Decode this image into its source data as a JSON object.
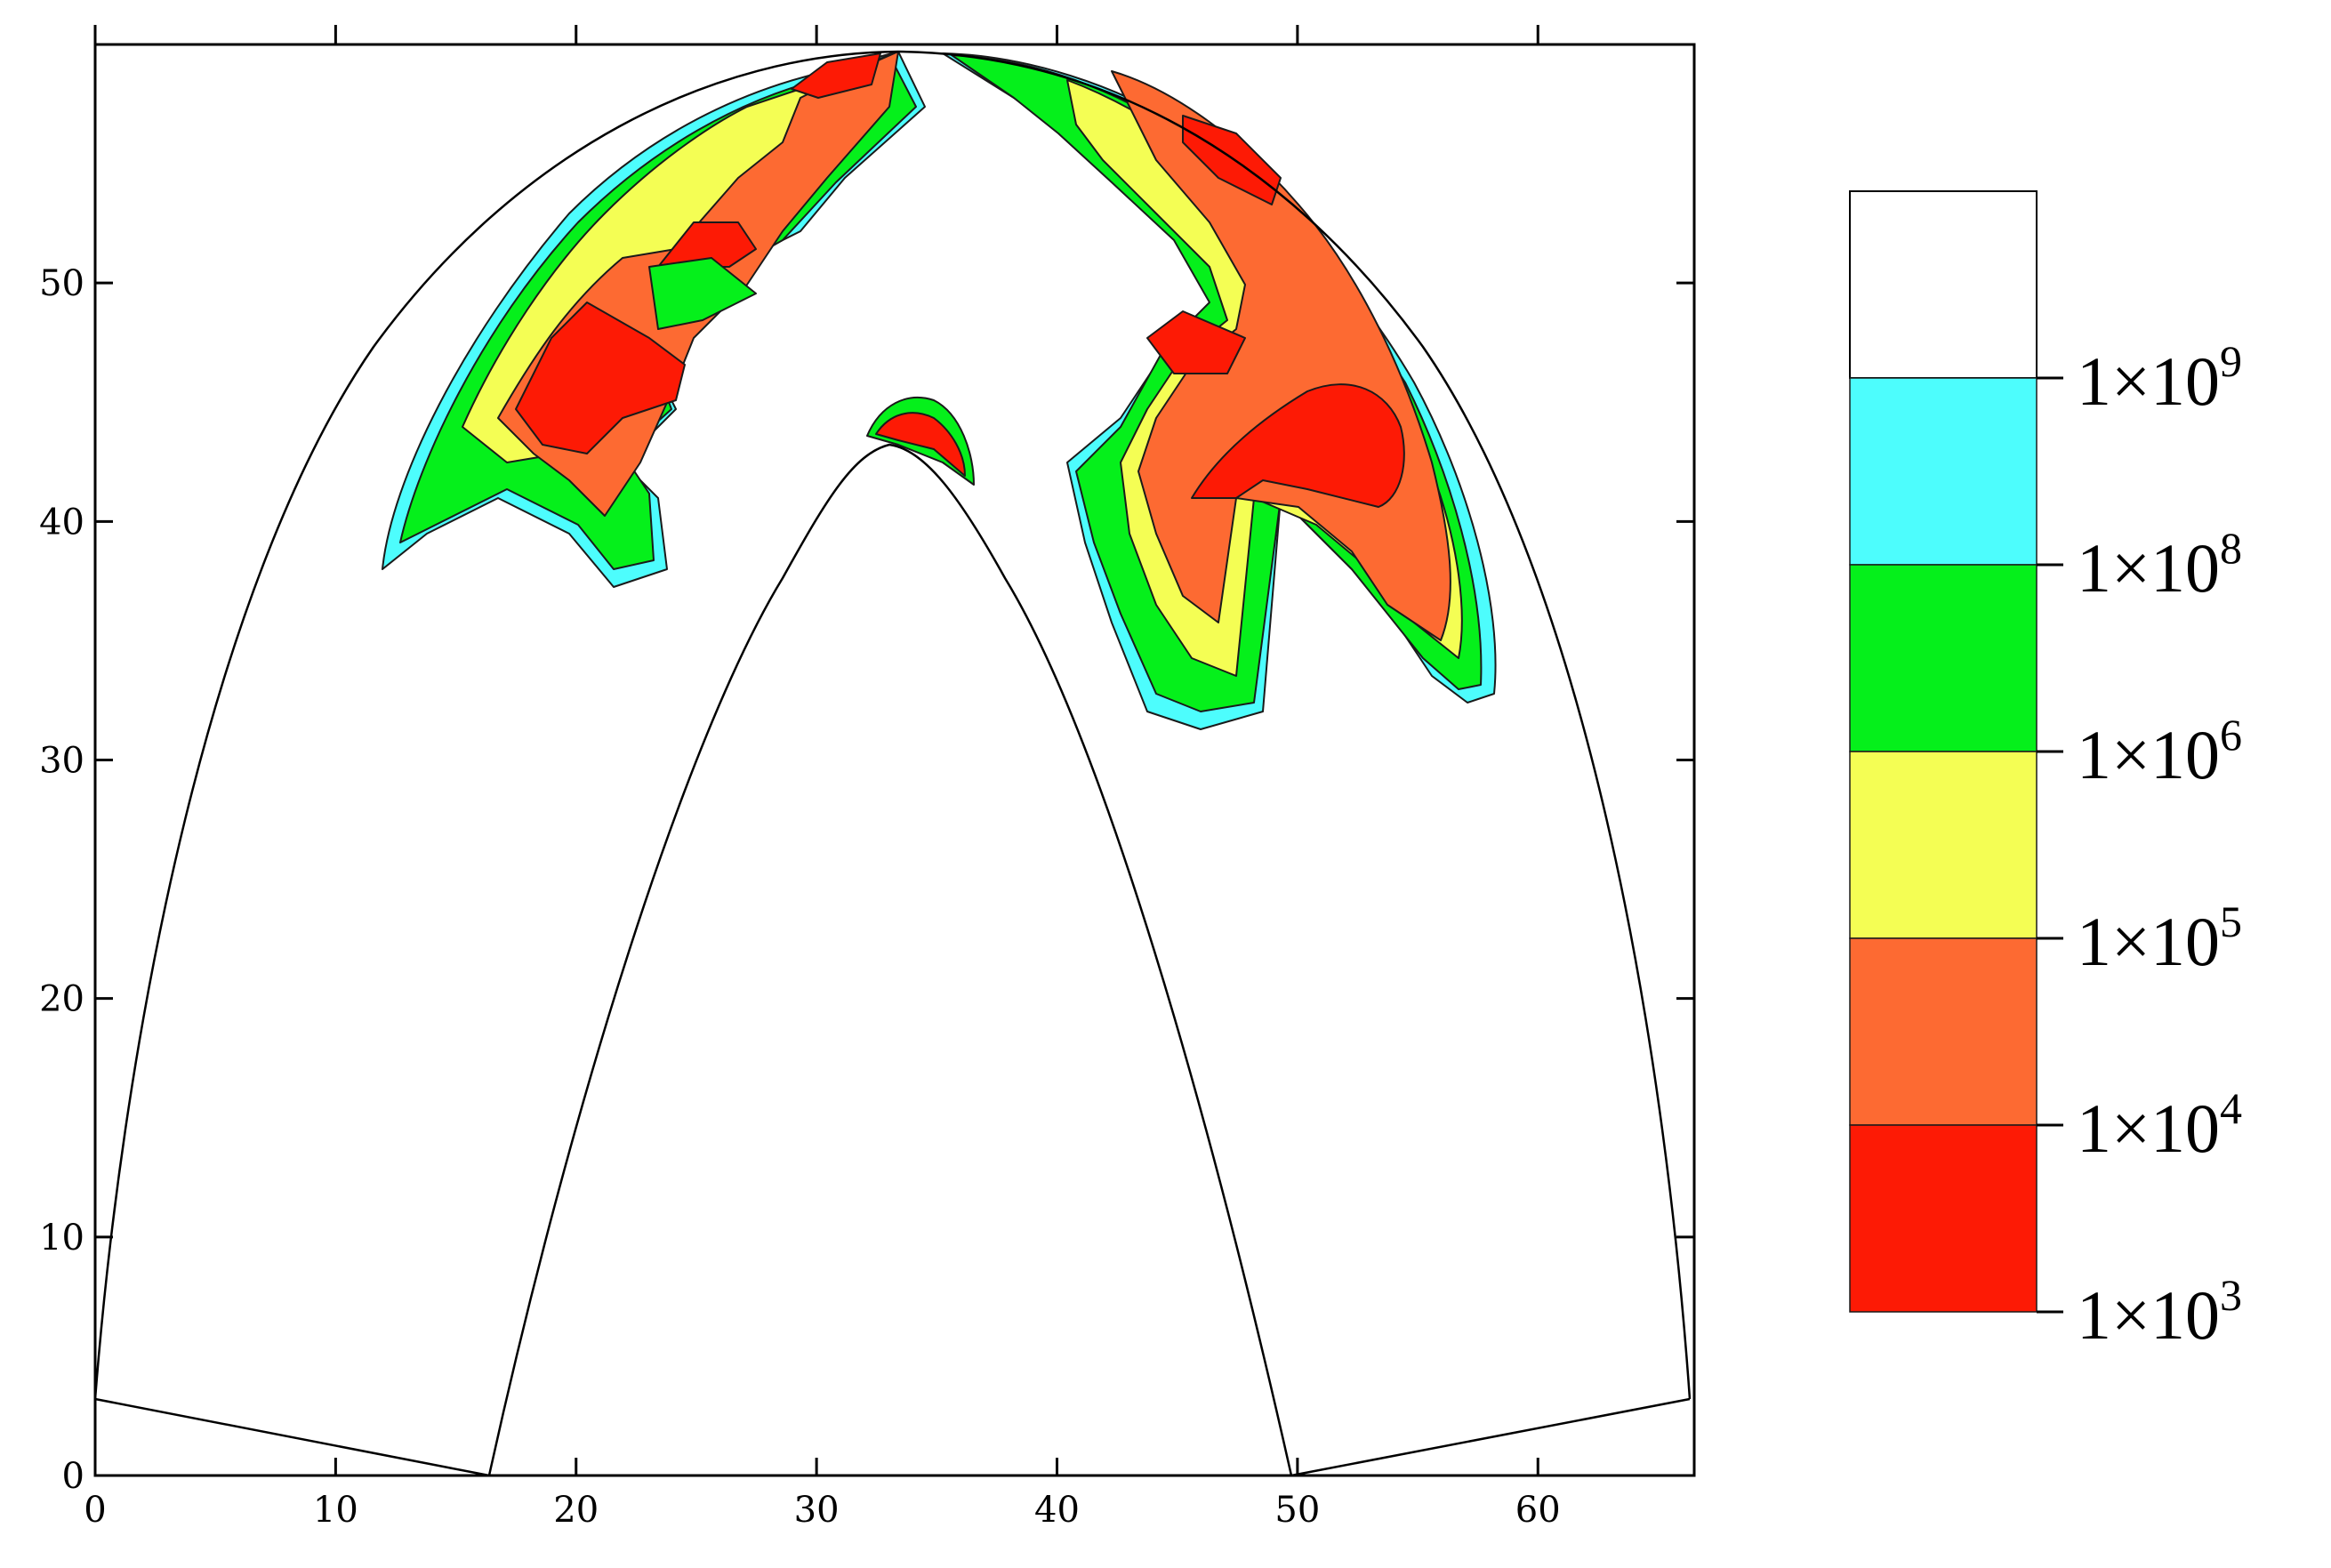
{
  "chart_data": {
    "type": "heatmap",
    "title": "",
    "xlabel": "",
    "ylabel": "",
    "xlim": [
      0,
      66.5
    ],
    "ylim": [
      0,
      60
    ],
    "x_ticks": [
      "0",
      "10",
      "20",
      "30",
      "40",
      "50",
      "60"
    ],
    "y_ticks": [
      "0",
      "10",
      "20",
      "30",
      "40",
      "50"
    ],
    "grid": false,
    "legend": {
      "placement": "right",
      "levels": [
        {
          "mantissa": "1×10",
          "exponent": "3",
          "color": "#fd1a05"
        },
        {
          "mantissa": "1×10",
          "exponent": "4",
          "color": "#fd6a32"
        },
        {
          "mantissa": "1×10",
          "exponent": "5",
          "color": "#f4fe54"
        },
        {
          "mantissa": "1×10",
          "exponent": "6",
          "color": "#05f01b"
        },
        {
          "mantissa": "1×10",
          "exponent": "8",
          "color": "#4dfdfd"
        },
        {
          "mantissa": "1×10",
          "exponent": "9",
          "color": "#ffffff"
        }
      ]
    },
    "colors": {
      "red": "#fd1a05",
      "orange": "#fd6a32",
      "yellow": "#f4fe54",
      "green": "#05f01b",
      "cyan": "#4dfdfd",
      "white": "#ffffff"
    }
  }
}
